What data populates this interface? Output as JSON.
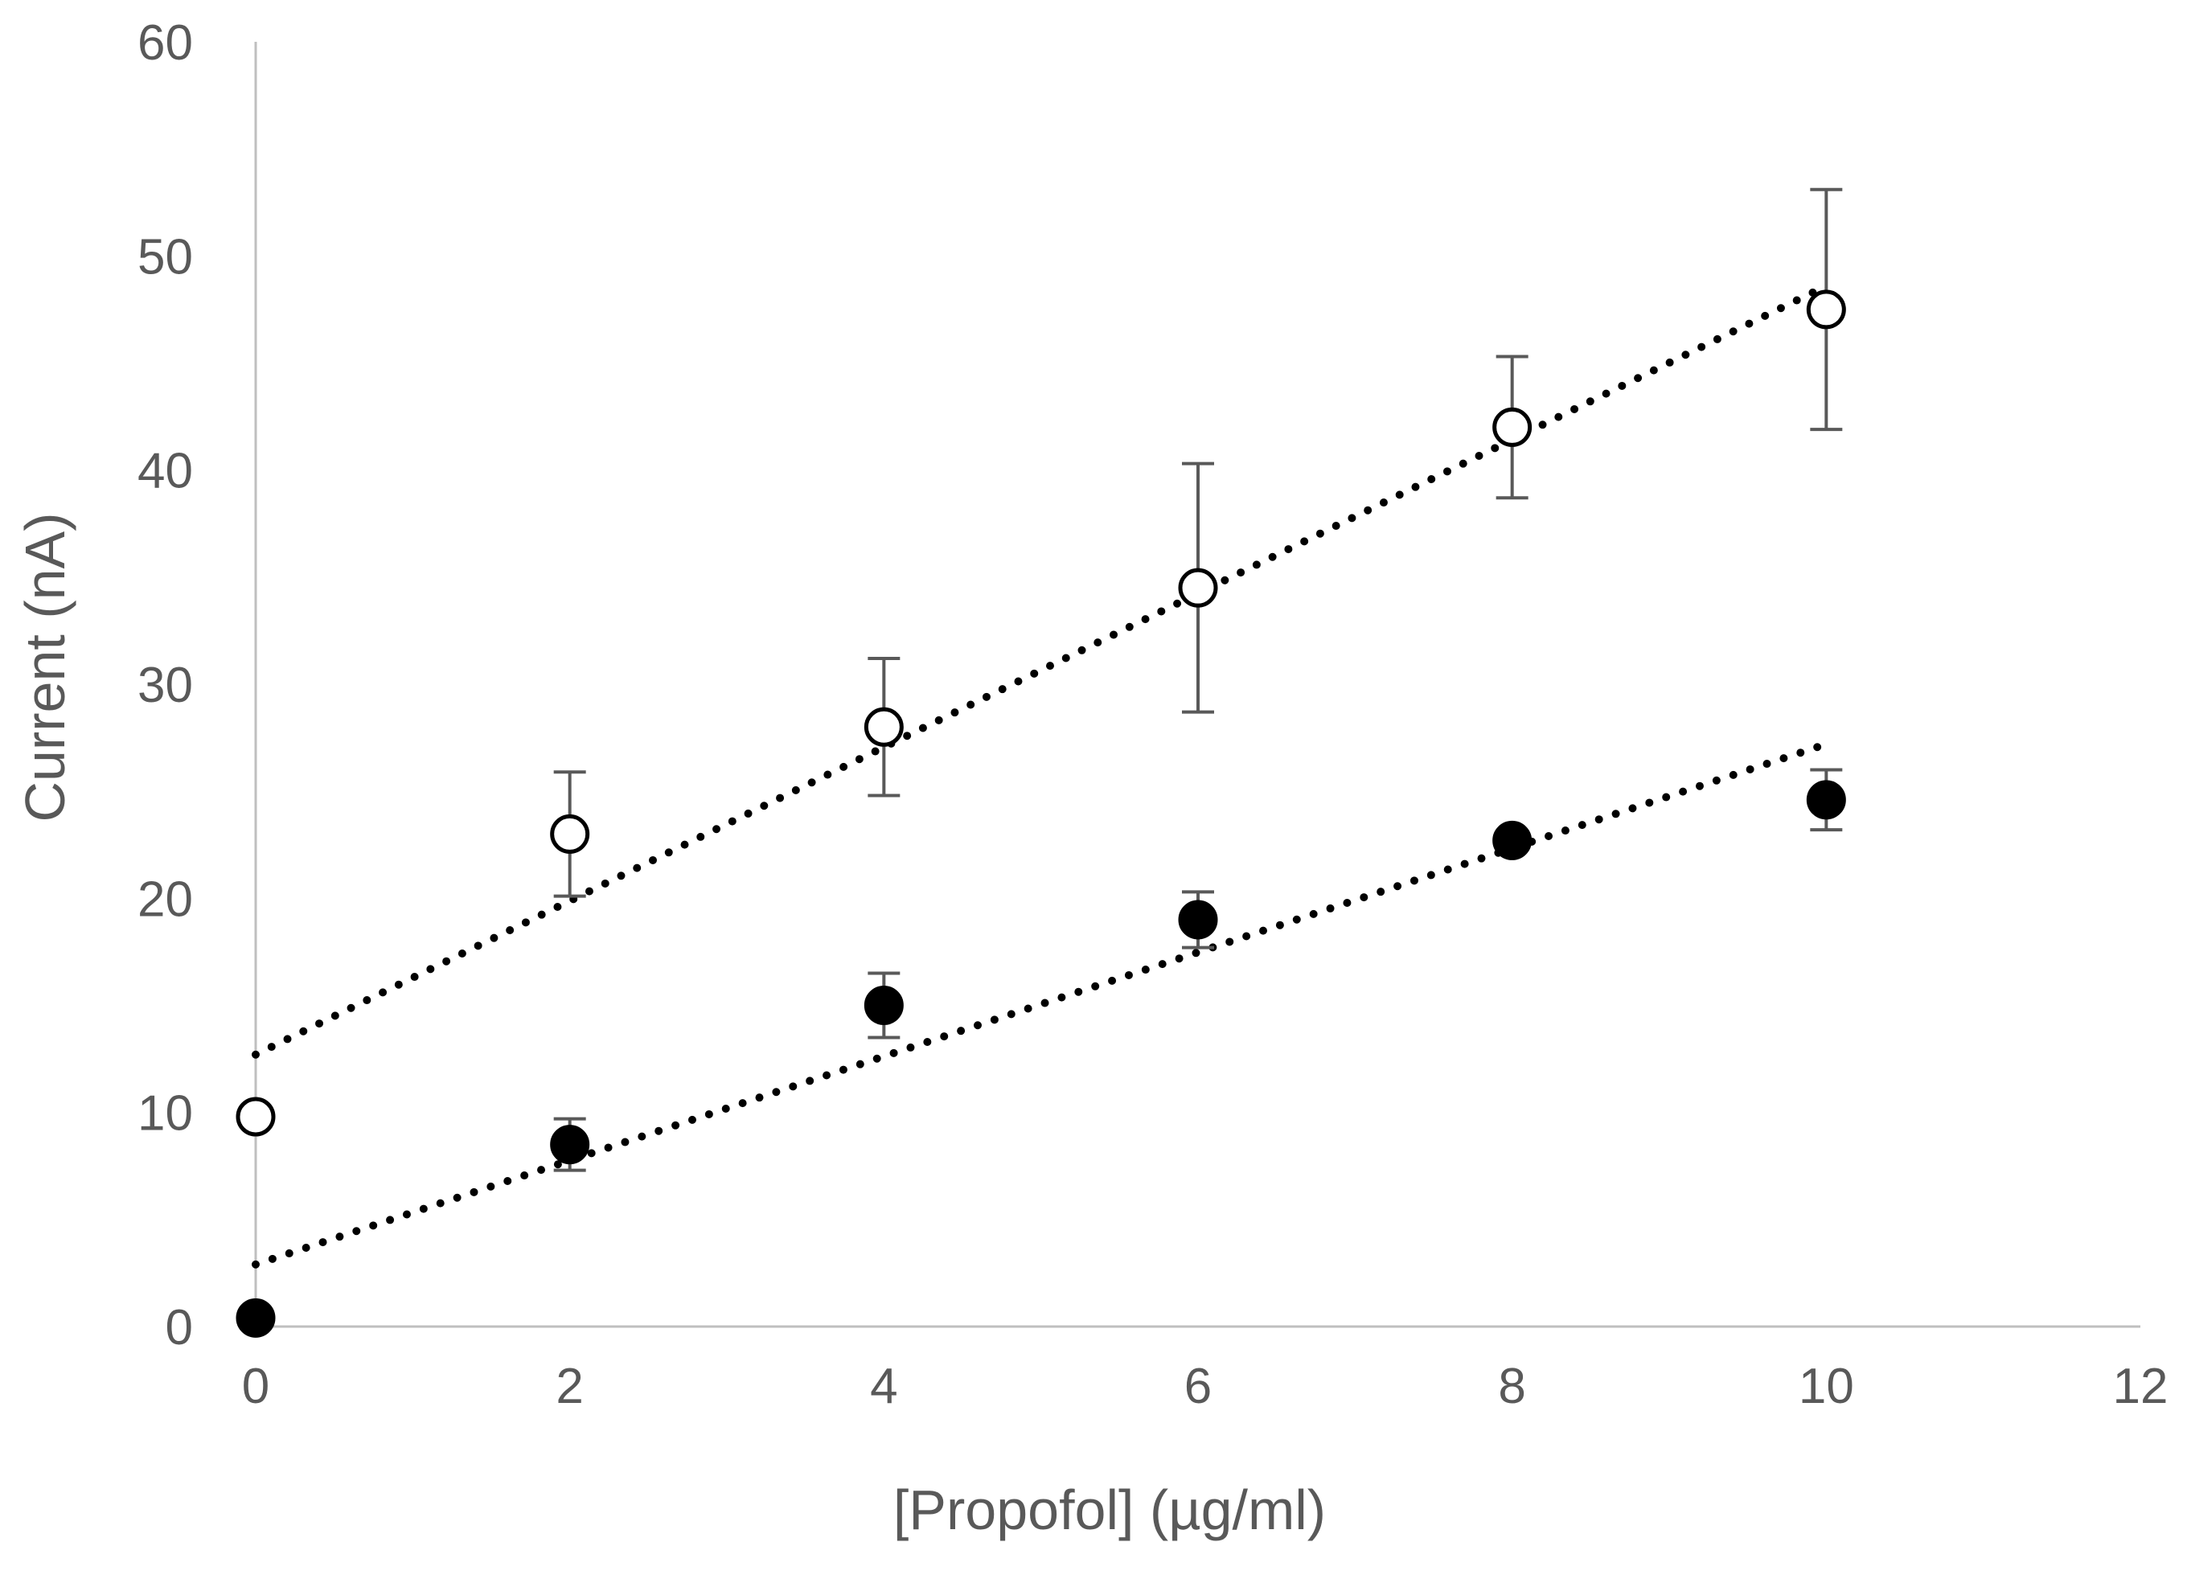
{
  "chart_data": {
    "type": "scatter",
    "title": "",
    "xlabel": "[Propofol] (µg/ml)",
    "ylabel": "Current (nA)",
    "xlim": [
      0,
      12
    ],
    "ylim": [
      0,
      60
    ],
    "xticks": [
      "0",
      "2",
      "4",
      "6",
      "8",
      "10",
      "12"
    ],
    "yticks": [
      "0",
      "10",
      "20",
      "30",
      "40",
      "50",
      "60"
    ],
    "grid": false,
    "legend": "none",
    "series": [
      {
        "name": "open circles",
        "marker": "open-circle",
        "x": [
          0,
          2,
          4,
          6,
          8,
          10
        ],
        "y": [
          9.8,
          23.0,
          28.0,
          34.5,
          42.0,
          47.5
        ],
        "error": [
          null,
          2.9,
          3.2,
          5.8,
          3.3,
          5.6
        ],
        "trendline": {
          "style": "dotted",
          "x": [
            0,
            10
          ],
          "y": [
            12.7,
            48.6
          ]
        }
      },
      {
        "name": "filled circles",
        "marker": "filled-circle",
        "x": [
          0,
          2,
          4,
          6,
          8,
          10
        ],
        "y": [
          0.4,
          8.5,
          15.0,
          19.0,
          22.7,
          24.6
        ],
        "error": [
          null,
          1.2,
          1.5,
          1.3,
          null,
          1.4
        ],
        "trendline": {
          "style": "dotted",
          "x": [
            0,
            10
          ],
          "y": [
            2.9,
            27.2
          ]
        }
      }
    ]
  }
}
